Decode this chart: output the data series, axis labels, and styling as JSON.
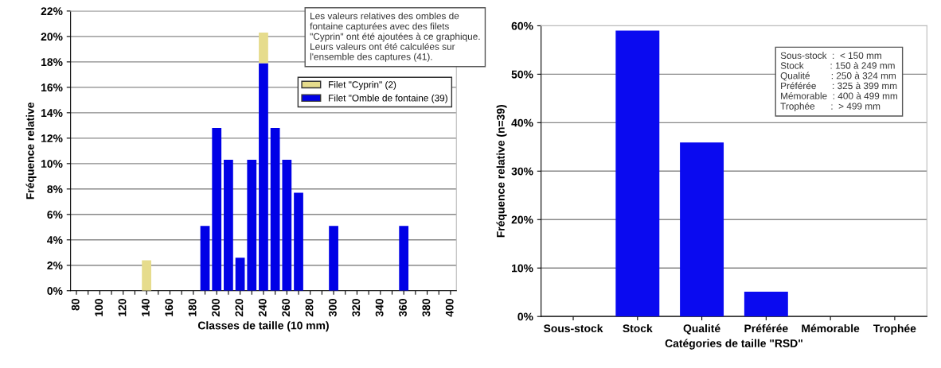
{
  "chart_data": [
    {
      "type": "bar",
      "stacked": true,
      "xlabel": "Classes de taille (10 mm)",
      "ylabel": "Fréquence relative",
      "categories": [
        "80",
        null,
        "100",
        null,
        "120",
        null,
        "140",
        null,
        "160",
        null,
        "180",
        null,
        "200",
        null,
        "220",
        null,
        "240",
        null,
        "260",
        null,
        "280",
        null,
        "300",
        null,
        "320",
        null,
        "340",
        null,
        "360",
        null,
        "380",
        null,
        "400"
      ],
      "series": [
        {
          "name": "Filet \"Omble de fontaine (39)",
          "color": "#0000e6",
          "values": [
            0,
            0,
            0,
            0,
            0,
            0,
            0,
            0,
            0,
            0,
            0,
            5.1,
            12.8,
            10.3,
            2.6,
            10.3,
            17.9,
            12.8,
            10.3,
            7.7,
            0,
            0,
            5.1,
            0,
            0,
            0,
            0,
            0,
            5.1,
            0,
            0,
            0,
            0
          ]
        },
        {
          "name": "Filet \"Cyprin\" (2)",
          "color": "#e6dc8c",
          "values": [
            0,
            0,
            0,
            0,
            0,
            0,
            2.4,
            0,
            0,
            0,
            0,
            0,
            0,
            0,
            0,
            0,
            2.4,
            0,
            0,
            0,
            0,
            0,
            0,
            0,
            0,
            0,
            0,
            0,
            0,
            0,
            0,
            0,
            0
          ]
        }
      ],
      "ylim": [
        0,
        22
      ],
      "yticks": [
        {
          "value": 0,
          "label": "0%"
        },
        {
          "value": 2,
          "label": "2%"
        },
        {
          "value": 4,
          "label": "4%"
        },
        {
          "value": 6,
          "label": "6%"
        },
        {
          "value": 8,
          "label": "8%"
        },
        {
          "value": 10,
          "label": "10%"
        },
        {
          "value": 12,
          "label": "12%"
        },
        {
          "value": 14,
          "label": "14%"
        },
        {
          "value": 16,
          "label": "16%"
        },
        {
          "value": 18,
          "label": "18%"
        },
        {
          "value": 20,
          "label": "20%"
        },
        {
          "value": 22,
          "label": "22%"
        }
      ],
      "grid": "y",
      "legend": "top right",
      "annotations": [
        "Les valeurs relatives des ombles de\nfontaine capturées avec des filets\n\"Cyprin\" ont été ajoutées à ce graphique.\nLeurs valeurs ont été calculées sur\nl'ensemble des captures (41)."
      ]
    },
    {
      "type": "bar",
      "xlabel": "Catégories de taille \"RSD\"",
      "ylabel": "Fréquence relative (n=39)",
      "categories": [
        "Sous-stock",
        "Stock",
        "Qualité",
        "Préférée",
        "Mémorable",
        "Trophée"
      ],
      "values": [
        0,
        59.0,
        35.9,
        5.1,
        0,
        0
      ],
      "color": "#0a0af0",
      "ylim": [
        0,
        60
      ],
      "yticks": [
        {
          "value": 0,
          "label": "0%"
        },
        {
          "value": 10,
          "label": "10%"
        },
        {
          "value": 20,
          "label": "20%"
        },
        {
          "value": 30,
          "label": "30%"
        },
        {
          "value": 40,
          "label": "40%"
        },
        {
          "value": 50,
          "label": "50%"
        },
        {
          "value": 60,
          "label": "60%"
        }
      ],
      "grid": "y",
      "annotations": [
        "Sous-stock  :  < 150 mm\nStock          : 150 à 249 mm\nQualité        : 250 à 324 mm\nPréférée      : 325 à 399 mm\nMémorable  : 400 à 499 mm\nTrophée      :  > 499 mm"
      ]
    }
  ]
}
